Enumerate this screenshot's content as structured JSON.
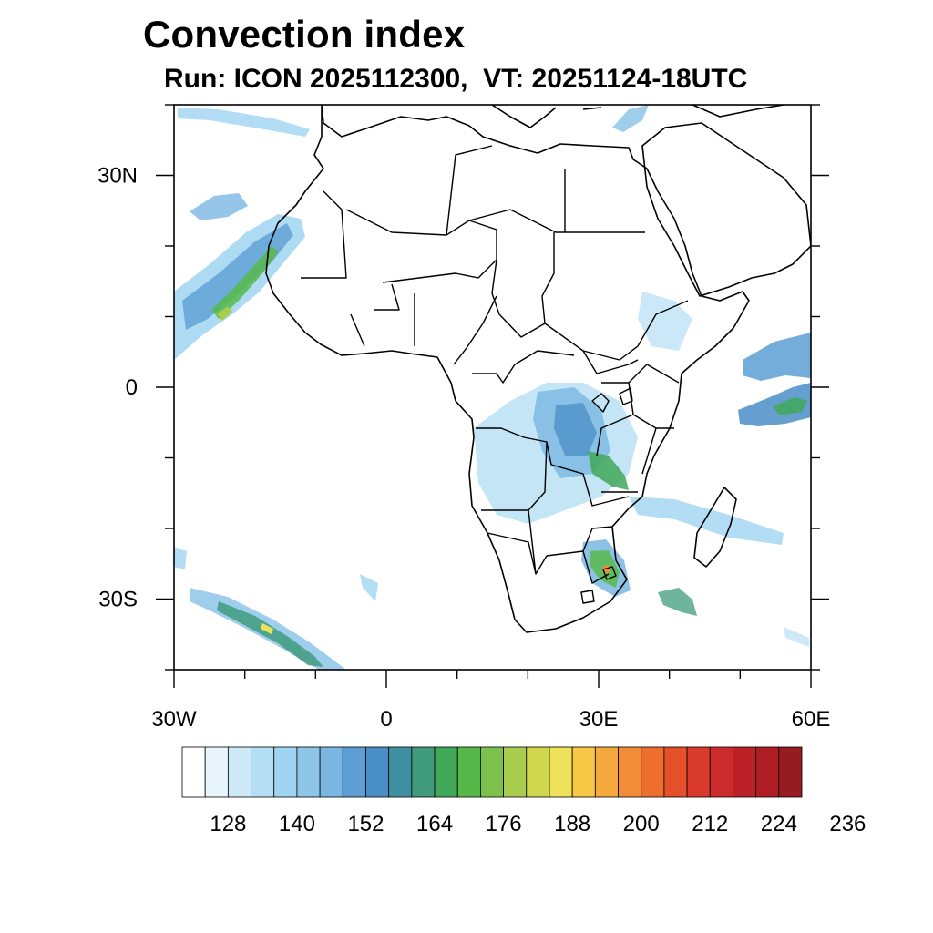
{
  "title": "Convection index",
  "subtitle": "Run: ICON 2025112300,  VT: 20251124-18UTC",
  "map": {
    "lon_range": [
      -30,
      60
    ],
    "lat_range": [
      -40,
      40
    ],
    "lat_labels": [
      {
        "value": 30,
        "label": "30N"
      },
      {
        "value": 0,
        "label": "0"
      },
      {
        "value": -30,
        "label": "30S"
      }
    ],
    "lon_labels": [
      {
        "value": -30,
        "label": "30W"
      },
      {
        "value": 0,
        "label": "0"
      },
      {
        "value": 30,
        "label": "30E"
      },
      {
        "value": 60,
        "label": "60E"
      }
    ]
  },
  "colorbar": {
    "colors": [
      "#ffffff",
      "#e8f4fb",
      "#cde9f6",
      "#b4def4",
      "#9fd5f2",
      "#8ec6ea",
      "#7ab6e2",
      "#5d9fd4",
      "#4a8ec7",
      "#3f8fa3",
      "#3f9b7c",
      "#41a85a",
      "#57b84a",
      "#7ec04c",
      "#a8cc4e",
      "#d2d84e",
      "#ede25a",
      "#f7c845",
      "#f5a93d",
      "#f38c36",
      "#ee6e30",
      "#e5502b",
      "#d93a2c",
      "#cd2c2c",
      "#be2028",
      "#ae1c24",
      "#961c1f"
    ],
    "tick_labels": [
      "128",
      "140",
      "152",
      "164",
      "176",
      "188",
      "200",
      "212",
      "224",
      "236"
    ]
  }
}
